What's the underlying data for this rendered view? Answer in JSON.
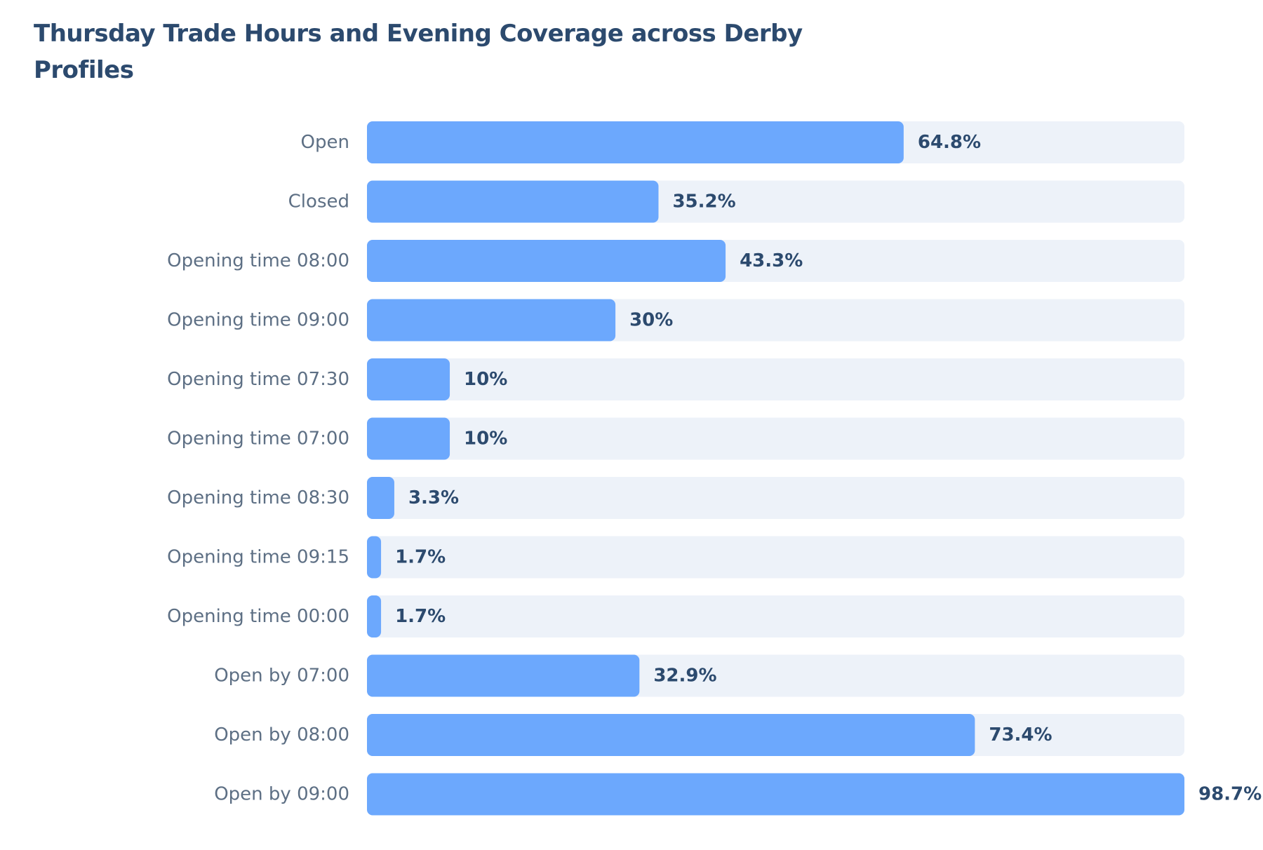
{
  "chart_data": {
    "type": "bar",
    "orientation": "horizontal",
    "title": "Thursday Trade Hours and Evening Coverage across Derby Profiles",
    "categories": [
      "Open",
      "Closed",
      "Opening time 08:00",
      "Opening time 09:00",
      "Opening time 07:30",
      "Opening time 07:00",
      "Opening time 08:30",
      "Opening time 09:15",
      "Opening time 00:00",
      "Open by 07:00",
      "Open by 08:00",
      "Open by 09:00"
    ],
    "values": [
      64.8,
      35.2,
      43.3,
      30,
      10,
      10,
      3.3,
      1.7,
      1.7,
      32.9,
      73.4,
      98.7
    ],
    "value_labels": [
      "64.8%",
      "35.2%",
      "43.3%",
      "30%",
      "10%",
      "10%",
      "3.3%",
      "1.7%",
      "1.7%",
      "32.9%",
      "73.4%",
      "98.7%"
    ],
    "unit": "%",
    "xlim": [
      0,
      98.7
    ],
    "grid": false,
    "legend": "none",
    "colors": {
      "bar": "#6ca8fd",
      "track": "#edf2f9",
      "title": "#2c4a6e",
      "category_label": "#5d6f84",
      "value_label": "#2c4a6e"
    }
  }
}
